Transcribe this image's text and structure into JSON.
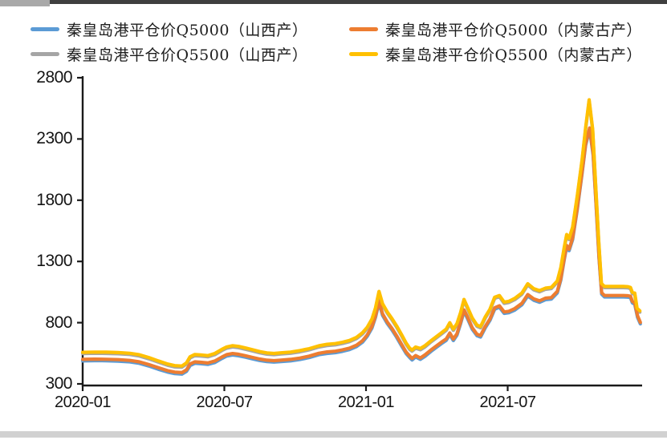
{
  "panel": {
    "background": "#ffffff",
    "top_bar_color": "#3f3f3f",
    "bottom_bar_color": "#d1d1d1"
  },
  "legend": {
    "items": [
      {
        "id": "q5000_sx",
        "label": "秦皇岛港平仓价Q5000（山西产）",
        "color": "#5B9BD5"
      },
      {
        "id": "q5000_nm",
        "label": "秦皇岛港平仓价Q5000（内蒙古产）",
        "color": "#ED7D31"
      },
      {
        "id": "q5500_sx",
        "label": "秦皇岛港平仓价Q5500（山西产）",
        "color": "#A5A5A5"
      },
      {
        "id": "q5500_nm",
        "label": "秦皇岛港平仓价Q5500（内蒙古产）",
        "color": "#FFC000"
      }
    ]
  },
  "chart_data": {
    "type": "line",
    "title": "",
    "xlabel": "",
    "ylabel": "",
    "grid": false,
    "legend_position": "top",
    "x_unit": "months_since_2020-01",
    "y_axis": {
      "min": 300,
      "max": 2800,
      "ticks": [
        300,
        800,
        1300,
        1800,
        2300,
        2800
      ]
    },
    "x_axis": {
      "ticks": [
        {
          "m": 0,
          "label": "2020-01"
        },
        {
          "m": 6,
          "label": "2020-07"
        },
        {
          "m": 12,
          "label": "2021-01"
        },
        {
          "m": 18,
          "label": "2021-07"
        }
      ],
      "range_months": [
        0,
        23.7
      ]
    },
    "series": [
      {
        "id": "q5500_sx",
        "name": "秦皇岛港平仓价Q5500（山西产）",
        "color": "#A5A5A5",
        "base": "q5500_nm",
        "delta": -10,
        "note": "tracks Q5500 Inner Mongolia line ~10 yuan lower, mostly hidden behind it"
      },
      {
        "id": "q5000_sx",
        "name": "秦皇岛港平仓价Q5000（山西产）",
        "color": "#5B9BD5",
        "base": "q5000_nm",
        "delta": -12,
        "note": "tracks Q5000 Inner Mongolia line ~12 yuan lower, mostly hidden behind it"
      },
      {
        "id": "q5000_nm",
        "name": "秦皇岛港平仓价Q5000（内蒙古产）",
        "color": "#ED7D31",
        "points": [
          [
            0,
            500
          ],
          [
            0.5,
            502
          ],
          [
            1,
            501
          ],
          [
            1.5,
            498
          ],
          [
            2,
            492
          ],
          [
            2.4,
            480
          ],
          [
            2.8,
            458
          ],
          [
            3.2,
            432
          ],
          [
            3.6,
            408
          ],
          [
            3.9,
            396
          ],
          [
            4.2,
            392
          ],
          [
            4.4,
            415
          ],
          [
            4.55,
            462
          ],
          [
            4.75,
            480
          ],
          [
            5,
            477
          ],
          [
            5.3,
            471
          ],
          [
            5.6,
            487
          ],
          [
            5.9,
            520
          ],
          [
            6.1,
            539
          ],
          [
            6.35,
            548
          ],
          [
            6.6,
            542
          ],
          [
            6.9,
            530
          ],
          [
            7.2,
            516
          ],
          [
            7.5,
            503
          ],
          [
            7.8,
            494
          ],
          [
            8.1,
            490
          ],
          [
            8.4,
            494
          ],
          [
            8.8,
            500
          ],
          [
            9.2,
            511
          ],
          [
            9.6,
            527
          ],
          [
            10,
            550
          ],
          [
            10.35,
            561
          ],
          [
            10.7,
            567
          ],
          [
            11,
            578
          ],
          [
            11.3,
            592
          ],
          [
            11.6,
            616
          ],
          [
            11.85,
            652
          ],
          [
            12.05,
            700
          ],
          [
            12.25,
            768
          ],
          [
            12.4,
            855
          ],
          [
            12.55,
            975
          ],
          [
            12.7,
            872
          ],
          [
            12.9,
            805
          ],
          [
            13.1,
            752
          ],
          [
            13.3,
            692
          ],
          [
            13.5,
            625
          ],
          [
            13.7,
            560
          ],
          [
            13.85,
            527
          ],
          [
            13.95,
            508
          ],
          [
            14.1,
            532
          ],
          [
            14.3,
            512
          ],
          [
            14.5,
            537
          ],
          [
            14.75,
            577
          ],
          [
            15,
            613
          ],
          [
            15.2,
            641
          ],
          [
            15.4,
            668
          ],
          [
            15.55,
            716
          ],
          [
            15.7,
            666
          ],
          [
            15.85,
            710
          ],
          [
            16,
            800
          ],
          [
            16.15,
            905
          ],
          [
            16.3,
            845
          ],
          [
            16.5,
            758
          ],
          [
            16.7,
            705
          ],
          [
            16.85,
            695
          ],
          [
            17.05,
            770
          ],
          [
            17.25,
            830
          ],
          [
            17.45,
            922
          ],
          [
            17.65,
            938
          ],
          [
            17.85,
            888
          ],
          [
            18.05,
            893
          ],
          [
            18.3,
            915
          ],
          [
            18.6,
            958
          ],
          [
            18.85,
            1030
          ],
          [
            19.1,
            995
          ],
          [
            19.35,
            978
          ],
          [
            19.6,
            1000
          ],
          [
            19.85,
            1005
          ],
          [
            20.1,
            1055
          ],
          [
            20.25,
            1160
          ],
          [
            20.4,
            1330
          ],
          [
            20.5,
            1430
          ],
          [
            20.6,
            1400
          ],
          [
            20.75,
            1490
          ],
          [
            20.95,
            1740
          ],
          [
            21.15,
            2030
          ],
          [
            21.3,
            2260
          ],
          [
            21.47,
            2390
          ],
          [
            21.62,
            2180
          ],
          [
            21.74,
            1790
          ],
          [
            21.87,
            1340
          ],
          [
            21.98,
            1045
          ],
          [
            22.1,
            1022
          ],
          [
            22.5,
            1022
          ],
          [
            22.9,
            1022
          ],
          [
            23.1,
            1020
          ],
          [
            23.2,
            1016
          ],
          [
            23.28,
            974
          ],
          [
            23.38,
            962
          ],
          [
            23.5,
            856
          ],
          [
            23.62,
            802
          ]
        ]
      },
      {
        "id": "q5500_nm",
        "name": "秦皇岛港平仓价Q5500（内蒙古产）",
        "color": "#FFC000",
        "points": [
          [
            0,
            558
          ],
          [
            0.5,
            560
          ],
          [
            1,
            559
          ],
          [
            1.5,
            556
          ],
          [
            2,
            550
          ],
          [
            2.4,
            538
          ],
          [
            2.8,
            515
          ],
          [
            3.2,
            488
          ],
          [
            3.6,
            462
          ],
          [
            3.9,
            449
          ],
          [
            4.2,
            446
          ],
          [
            4.4,
            472
          ],
          [
            4.55,
            522
          ],
          [
            4.75,
            540
          ],
          [
            5,
            537
          ],
          [
            5.3,
            531
          ],
          [
            5.6,
            549
          ],
          [
            5.9,
            583
          ],
          [
            6.1,
            602
          ],
          [
            6.35,
            612
          ],
          [
            6.6,
            606
          ],
          [
            6.9,
            593
          ],
          [
            7.2,
            579
          ],
          [
            7.5,
            564
          ],
          [
            7.8,
            553
          ],
          [
            8.1,
            549
          ],
          [
            8.4,
            554
          ],
          [
            8.8,
            560
          ],
          [
            9.2,
            572
          ],
          [
            9.6,
            588
          ],
          [
            10,
            611
          ],
          [
            10.35,
            623
          ],
          [
            10.7,
            629
          ],
          [
            11,
            640
          ],
          [
            11.3,
            655
          ],
          [
            11.6,
            680
          ],
          [
            11.85,
            718
          ],
          [
            12.05,
            762
          ],
          [
            12.25,
            830
          ],
          [
            12.4,
            920
          ],
          [
            12.55,
            1055
          ],
          [
            12.7,
            955
          ],
          [
            12.9,
            888
          ],
          [
            13.1,
            833
          ],
          [
            13.3,
            773
          ],
          [
            13.5,
            705
          ],
          [
            13.7,
            633
          ],
          [
            13.85,
            592
          ],
          [
            13.95,
            577
          ],
          [
            14.1,
            601
          ],
          [
            14.3,
            589
          ],
          [
            14.5,
            612
          ],
          [
            14.75,
            652
          ],
          [
            15,
            689
          ],
          [
            15.2,
            718
          ],
          [
            15.4,
            748
          ],
          [
            15.55,
            800
          ],
          [
            15.7,
            747
          ],
          [
            15.85,
            792
          ],
          [
            16,
            880
          ],
          [
            16.15,
            990
          ],
          [
            16.3,
            925
          ],
          [
            16.5,
            838
          ],
          [
            16.7,
            780
          ],
          [
            16.85,
            768
          ],
          [
            17.05,
            848
          ],
          [
            17.25,
            910
          ],
          [
            17.45,
            1008
          ],
          [
            17.65,
            1022
          ],
          [
            17.85,
            968
          ],
          [
            18.05,
            975
          ],
          [
            18.3,
            998
          ],
          [
            18.6,
            1042
          ],
          [
            18.85,
            1118
          ],
          [
            19.1,
            1078
          ],
          [
            19.35,
            1062
          ],
          [
            19.6,
            1082
          ],
          [
            19.85,
            1088
          ],
          [
            20.1,
            1140
          ],
          [
            20.25,
            1250
          ],
          [
            20.4,
            1420
          ],
          [
            20.5,
            1520
          ],
          [
            20.6,
            1488
          ],
          [
            20.75,
            1580
          ],
          [
            20.95,
            1840
          ],
          [
            21.15,
            2130
          ],
          [
            21.3,
            2390
          ],
          [
            21.45,
            2620
          ],
          [
            21.6,
            2380
          ],
          [
            21.72,
            1950
          ],
          [
            21.85,
            1480
          ],
          [
            21.97,
            1120
          ],
          [
            22.1,
            1096
          ],
          [
            22.5,
            1096
          ],
          [
            22.9,
            1096
          ],
          [
            23.1,
            1094
          ],
          [
            23.2,
            1088
          ],
          [
            23.28,
            1048
          ],
          [
            23.38,
            1042
          ],
          [
            23.48,
            918
          ],
          [
            23.6,
            896
          ]
        ]
      }
    ]
  }
}
